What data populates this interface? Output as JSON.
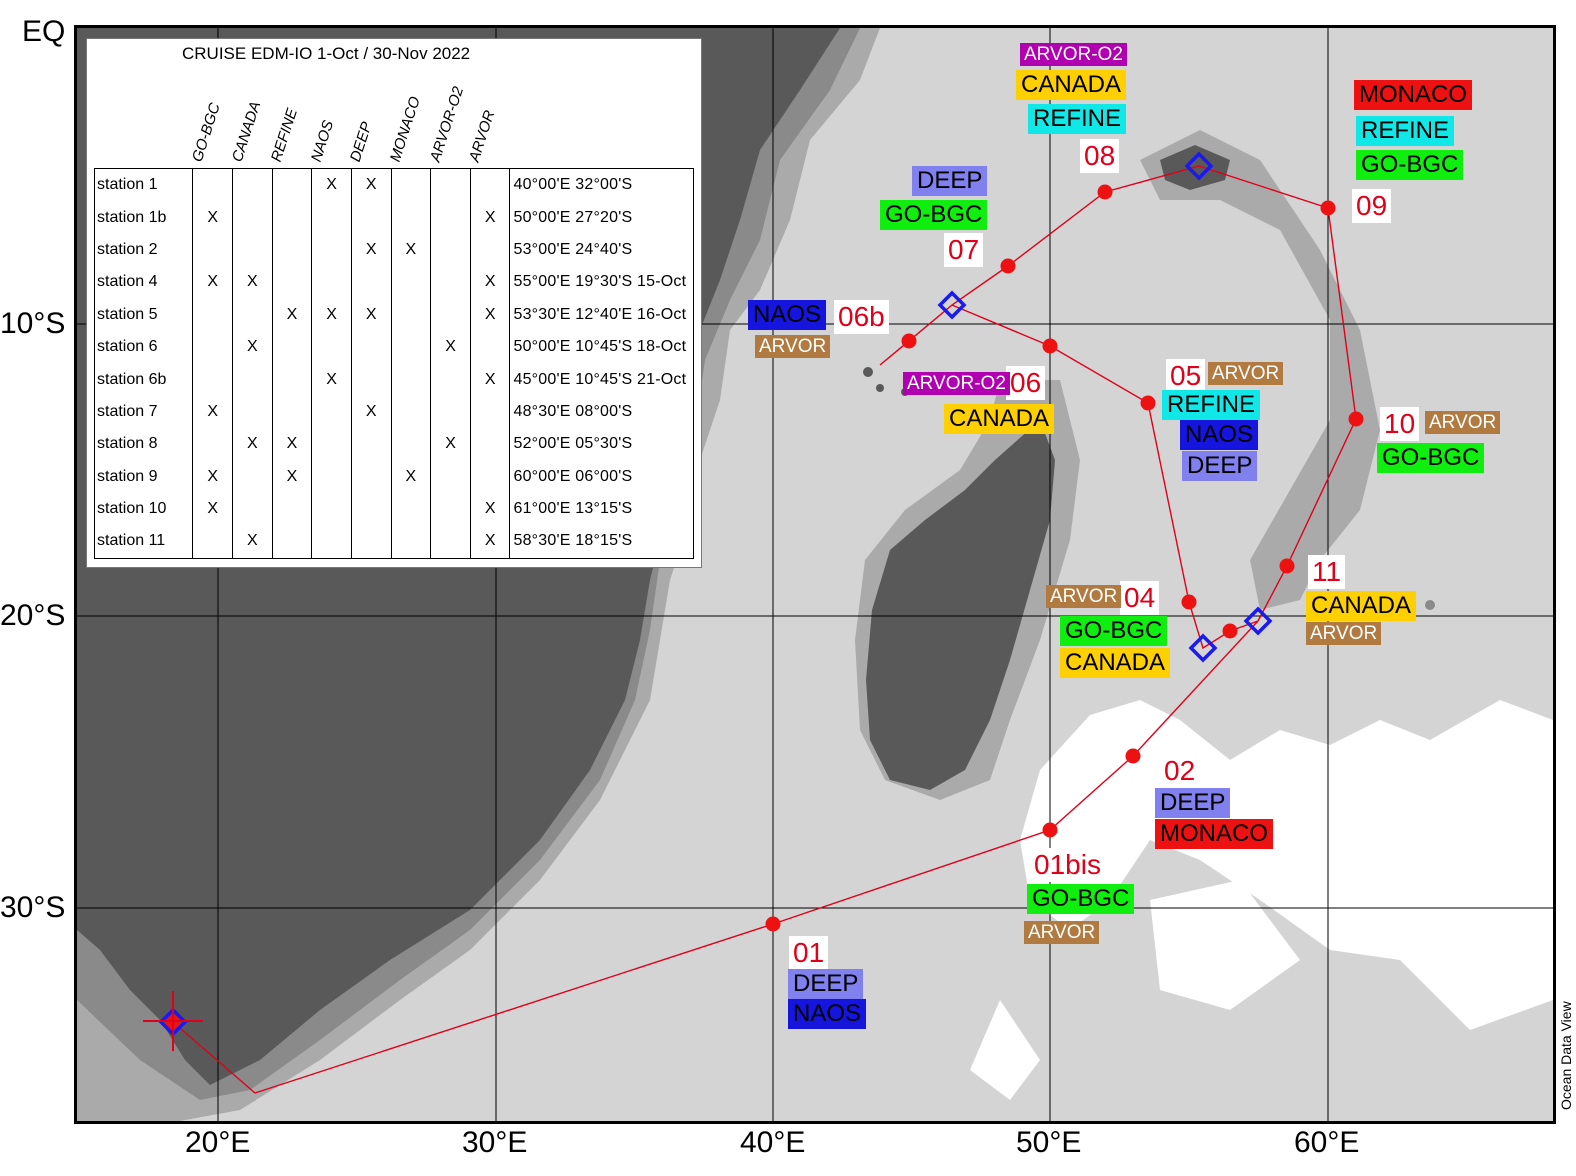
{
  "map": {
    "lat_labels": [
      "EQ",
      "10°S",
      "20°S",
      "30°S"
    ],
    "lon_labels": [
      "20°E",
      "30°E",
      "40°E",
      "50°E",
      "60°E"
    ],
    "credit": "Ocean Data View",
    "colors": {
      "land": "#595959",
      "deep_ocean": "#d4d4d4",
      "mid_ocean": "#aaaaaa",
      "shelf": "#8a8a8a",
      "shallow": "#ffffff",
      "track": "#e0001a",
      "station_dot": "#ee1111",
      "float_marker": "#1a1aee"
    }
  },
  "legend": {
    "title": "CRUISE EDM-IO 1-Oct / 30-Nov 2022",
    "columns": [
      "GO-BGC",
      "CANADA",
      "REFINE",
      "NAOS",
      "DEEP",
      "MONACO",
      "ARVOR-O2",
      "ARVOR"
    ],
    "rows": [
      {
        "station": "station 1",
        "flags": [
          "",
          "",
          "",
          "X",
          "X",
          "",
          "",
          ""
        ],
        "position": "40°00'E  32°00'S"
      },
      {
        "station": "station 1b",
        "flags": [
          "X",
          "",
          "",
          "",
          "",
          "",
          "",
          "X"
        ],
        "position": "50°00'E  27°20'S"
      },
      {
        "station": "station 2",
        "flags": [
          "",
          "",
          "",
          "",
          "X",
          "X",
          "",
          ""
        ],
        "position": "53°00'E  24°40'S"
      },
      {
        "station": "station 4",
        "flags": [
          "X",
          "X",
          "",
          "",
          "",
          "",
          "",
          "X"
        ],
        "position": "55°00'E  19°30'S   15-Oct"
      },
      {
        "station": "station 5",
        "flags": [
          "",
          "",
          "X",
          "X",
          "X",
          "",
          "",
          "X"
        ],
        "position": "53°30'E  12°40'E   16-Oct"
      },
      {
        "station": "station 6",
        "flags": [
          "",
          "X",
          "",
          "",
          "",
          "",
          "X",
          ""
        ],
        "position": "50°00'E  10°45'S   18-Oct"
      },
      {
        "station": "station 6b",
        "flags": [
          "",
          "",
          "",
          "X",
          "",
          "",
          "",
          "X"
        ],
        "position": "45°00'E  10°45'S   21-Oct"
      },
      {
        "station": "station 7",
        "flags": [
          "X",
          "",
          "",
          "",
          "X",
          "",
          "",
          ""
        ],
        "position": "48°30'E  08°00'S"
      },
      {
        "station": "station 8",
        "flags": [
          "",
          "X",
          "X",
          "",
          "",
          "",
          "X",
          ""
        ],
        "position": "52°00'E  05°30'S"
      },
      {
        "station": "station 9",
        "flags": [
          "X",
          "",
          "X",
          "",
          "",
          "X",
          "",
          ""
        ],
        "position": "60°00'E  06°00'S"
      },
      {
        "station": "station 10",
        "flags": [
          "X",
          "",
          "",
          "",
          "",
          "",
          "",
          "X"
        ],
        "position": "61°00'E  13°15'S"
      },
      {
        "station": "station 11",
        "flags": [
          "",
          "X",
          "",
          "",
          "",
          "",
          "",
          "X"
        ],
        "position": "58°30'E  18°15'S"
      }
    ]
  },
  "station_labels": [
    {
      "id": "01",
      "text": "01"
    },
    {
      "id": "01bis",
      "text": "01bis"
    },
    {
      "id": "02",
      "text": "02"
    },
    {
      "id": "04",
      "text": "04"
    },
    {
      "id": "05",
      "text": "05"
    },
    {
      "id": "06",
      "text": "06"
    },
    {
      "id": "06b",
      "text": "06b"
    },
    {
      "id": "07",
      "text": "07"
    },
    {
      "id": "08",
      "text": "08"
    },
    {
      "id": "09",
      "text": "09"
    },
    {
      "id": "10",
      "text": "10"
    },
    {
      "id": "11",
      "text": "11"
    }
  ],
  "float_tags": {
    "deep": "DEEP",
    "naos": "NAOS",
    "gobgc": "GO-BGC",
    "arvor": "ARVOR",
    "monaco": "MONACO",
    "canada": "CANADA",
    "refine": "REFINE",
    "arvoro2": "ARVOR-O2"
  },
  "tag_colors": {
    "DEEP": "#8080ee",
    "NAOS": "#1515dd",
    "GO-BGC": "#10ee10",
    "ARVOR": "#b07a40",
    "MONACO": "#ee1111",
    "CANADA": "#ffd000",
    "REFINE": "#10e8e8",
    "ARVOR-O2": "#b000b0"
  }
}
